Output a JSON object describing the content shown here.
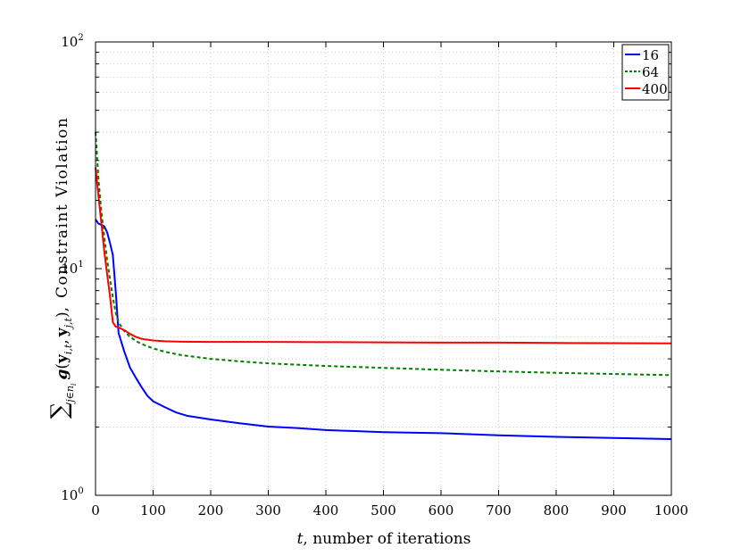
{
  "chart_data": {
    "type": "line",
    "title": "",
    "xlabel": "t, number of iterations",
    "xlabel_var": "t",
    "xlabel_rest": ", number of iterations",
    "ylabel": "∑ j∈n i g(y i,t , y j,t ), Constraint Violation",
    "ylabel_parts": {
      "sum": "∑",
      "sum_sub": "j∈n",
      "sum_subsub": "i",
      "func": "g",
      "open": "(",
      "y1": "y",
      "y1_sub": "i,t",
      "comma": ",",
      "y2": "y",
      "y2_sub": "j,t",
      "close": "),",
      "rest": "Constraint  Violation"
    },
    "xlim": [
      0,
      1000
    ],
    "ylim": [
      1,
      100
    ],
    "yscale": "log",
    "grid": true,
    "legend_position": "top-right",
    "x_ticks": [
      0,
      100,
      200,
      300,
      400,
      500,
      600,
      700,
      800,
      900,
      1000
    ],
    "x_tick_labels": [
      "0",
      "100",
      "200",
      "300",
      "400",
      "500",
      "600",
      "700",
      "800",
      "900",
      "1000"
    ],
    "y_ticks": [
      {
        "value": 1,
        "base": "10",
        "exp": "0"
      },
      {
        "value": 10,
        "base": "10",
        "exp": "1"
      },
      {
        "value": 100,
        "base": "10",
        "exp": "2"
      }
    ],
    "series": [
      {
        "name": "16",
        "color": "#0000ff",
        "dash": "solid",
        "x": [
          0,
          5,
          10,
          15,
          20,
          25,
          30,
          35,
          40,
          50,
          60,
          70,
          80,
          90,
          100,
          120,
          140,
          160,
          180,
          200,
          250,
          300,
          350,
          400,
          450,
          500,
          600,
          700,
          800,
          900,
          1000
        ],
        "y": [
          16.5,
          15.8,
          15.6,
          15.4,
          14.5,
          13.0,
          11.5,
          8.0,
          5.2,
          4.3,
          3.65,
          3.3,
          3.0,
          2.75,
          2.6,
          2.45,
          2.32,
          2.24,
          2.2,
          2.16,
          2.08,
          2.01,
          1.98,
          1.94,
          1.92,
          1.9,
          1.88,
          1.84,
          1.81,
          1.79,
          1.77
        ]
      },
      {
        "name": "64",
        "color": "#007f00",
        "dash": "dashed",
        "x": [
          0,
          5,
          10,
          15,
          20,
          25,
          30,
          35,
          40,
          50,
          60,
          70,
          80,
          100,
          120,
          150,
          200,
          250,
          300,
          400,
          500,
          600,
          700,
          800,
          900,
          1000
        ],
        "y": [
          40,
          25,
          18,
          14,
          11,
          9.0,
          7.5,
          6.4,
          5.8,
          5.3,
          5.0,
          4.8,
          4.65,
          4.45,
          4.3,
          4.15,
          4.0,
          3.9,
          3.82,
          3.72,
          3.65,
          3.58,
          3.52,
          3.47,
          3.43,
          3.39
        ]
      },
      {
        "name": "400",
        "color": "#ff0000",
        "dash": "solid",
        "x": [
          0,
          5,
          10,
          15,
          20,
          25,
          30,
          35,
          40,
          50,
          60,
          70,
          80,
          100,
          120,
          150,
          200,
          300,
          400,
          500,
          600,
          700,
          800,
          900,
          1000
        ],
        "y": [
          28,
          21,
          16,
          12,
          9.5,
          7.6,
          5.8,
          5.55,
          5.5,
          5.35,
          5.15,
          5.0,
          4.9,
          4.82,
          4.78,
          4.76,
          4.75,
          4.75,
          4.74,
          4.73,
          4.72,
          4.72,
          4.7,
          4.69,
          4.68
        ]
      }
    ]
  }
}
